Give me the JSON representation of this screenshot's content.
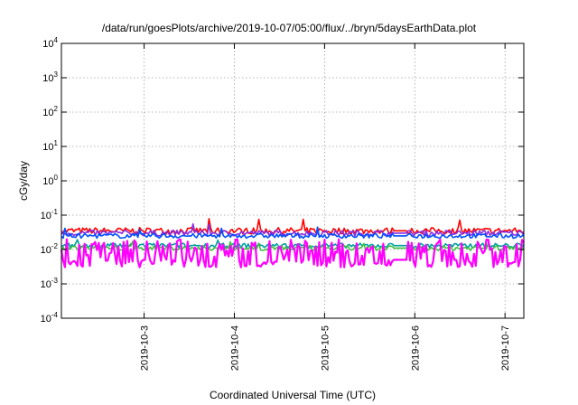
{
  "chart_data": {
    "type": "line",
    "title": "/data/run/goesPlots/archive/2019-10-07/05:00/flux/../bryn/5daysEarthData.plot",
    "xlabel": "Coordinated Universal Time (UTC)",
    "ylabel": "cGy/day",
    "y_scale": "log",
    "ylim": [
      0.0001,
      10000
    ],
    "y_ticks": [
      {
        "value": 0.0001,
        "base": "10",
        "exp": "-4"
      },
      {
        "value": 0.001,
        "base": "10",
        "exp": "-3"
      },
      {
        "value": 0.01,
        "base": "10",
        "exp": "-2"
      },
      {
        "value": 0.1,
        "base": "10",
        "exp": "-1"
      },
      {
        "value": 1,
        "base": "10",
        "exp": "0"
      },
      {
        "value": 10,
        "base": "10",
        "exp": "1"
      },
      {
        "value": 100,
        "base": "10",
        "exp": "2"
      },
      {
        "value": 1000,
        "base": "10",
        "exp": "3"
      },
      {
        "value": 10000,
        "base": "10",
        "exp": "4"
      }
    ],
    "xlim": [
      "2019-10-02T02:00",
      "2019-10-07T05:00"
    ],
    "x_ticks": [
      {
        "value": "2019-10-03T00:00",
        "label": "2019-10-3"
      },
      {
        "value": "2019-10-04T00:00",
        "label": "2019-10-4"
      },
      {
        "value": "2019-10-05T00:00",
        "label": "2019-10-5"
      },
      {
        "value": "2019-10-06T00:00",
        "label": "2019-10-6"
      },
      {
        "value": "2019-10-07T00:00",
        "label": "2019-10-7"
      }
    ],
    "grid": true,
    "legend": "none",
    "data_gap": [
      "2019-10-05T18:00",
      "2019-10-05T22:00"
    ],
    "series": [
      {
        "color": "#ff0000",
        "typical": 0.035,
        "min": 0.025,
        "max": 0.085
      },
      {
        "color": "#8a2be2",
        "typical": 0.03,
        "min": 0.02,
        "max": 0.06
      },
      {
        "color": "#0050ff",
        "typical": 0.025,
        "min": 0.018,
        "max": 0.045
      },
      {
        "color": "#00a0a0",
        "typical": 0.013,
        "min": 0.008,
        "max": 0.02
      },
      {
        "color": "#40c040",
        "typical": 0.011,
        "min": 0.007,
        "max": 0.018
      },
      {
        "color": "#ff00ff",
        "typical": 0.005,
        "min": 0.003,
        "max": 0.02
      }
    ]
  }
}
